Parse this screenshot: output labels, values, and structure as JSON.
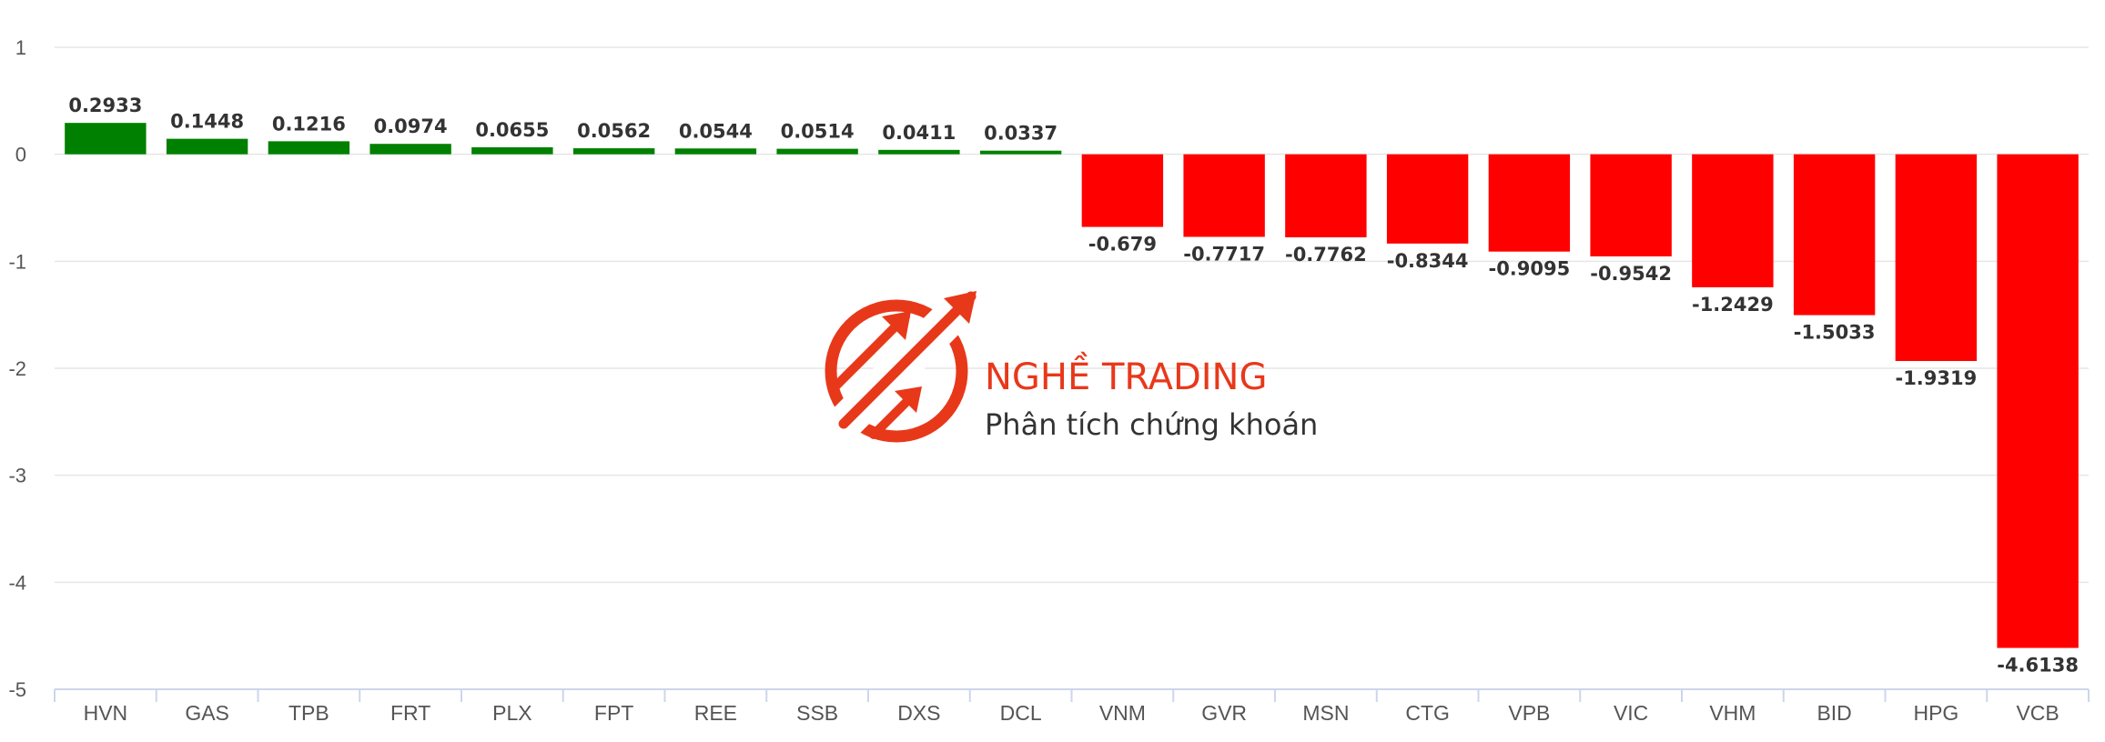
{
  "chart_data": {
    "type": "bar",
    "categories": [
      "HVN",
      "GAS",
      "TPB",
      "FRT",
      "PLX",
      "FPT",
      "REE",
      "SSB",
      "DXS",
      "DCL",
      "VNM",
      "GVR",
      "MSN",
      "CTG",
      "VPB",
      "VIC",
      "VHM",
      "BID",
      "HPG",
      "VCB"
    ],
    "values": [
      0.2933,
      0.1448,
      0.1216,
      0.0974,
      0.0655,
      0.0562,
      0.0544,
      0.0514,
      0.0411,
      0.0337,
      -0.679,
      -0.7717,
      -0.7762,
      -0.8344,
      -0.9095,
      -0.9542,
      -1.2429,
      -1.5033,
      -1.9319,
      -4.6138
    ],
    "data_labels": [
      "0.2933",
      "0.1448",
      "0.1216",
      "0.0974",
      "0.0655",
      "0.0562",
      "0.0544",
      "0.0514",
      "0.0411",
      "0.0337",
      "-0.679",
      "-0.7717",
      "-0.7762",
      "-0.8344",
      "-0.9095",
      "-0.9542",
      "-1.2429",
      "-1.5033",
      "-1.9319",
      "-4.6138"
    ],
    "ylim": [
      -5,
      1
    ],
    "yticks": [
      1,
      0,
      -1,
      -2,
      -3,
      -4,
      -5
    ],
    "grid": true,
    "colors": {
      "positive": "#008000",
      "negative": "#ff0000",
      "grid": "#e6e6e6",
      "axis": "#ccd6eb"
    }
  },
  "watermark": {
    "title": "NGHỀ TRADING",
    "subtitle": "Phân tích chứng khoán",
    "logo_icon": "rising-arrows-logo-icon",
    "color": "#e8381a"
  }
}
